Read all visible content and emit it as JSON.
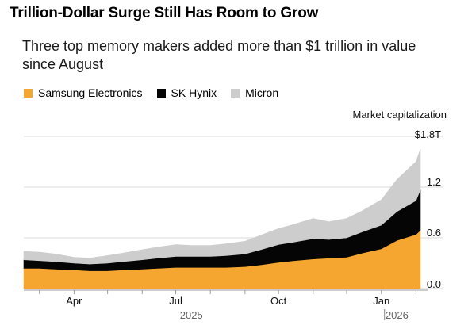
{
  "title": "Trillion-Dollar Surge Still Has Room to Grow",
  "subtitle": "Three top memory makers added more than $1 trillion in value since August",
  "colors": {
    "samsung": "#f5a630",
    "hynix": "#050505",
    "micron": "#cdcdcd",
    "grid": "#d8d8d8",
    "axis": "#999999"
  },
  "legend": [
    {
      "name": "Samsung Electronics",
      "color": "#f5a630"
    },
    {
      "name": "SK Hynix",
      "color": "#050505"
    },
    {
      "name": "Micron",
      "color": "#cdcdcd"
    }
  ],
  "chart_data": {
    "type": "area",
    "stacked": true,
    "ylabel": "Market capitalization",
    "y_ticks": [
      "$1.8T",
      "1.2",
      "0.6",
      "0.0"
    ],
    "y_tick_values": [
      1.8,
      1.2,
      0.6,
      0.0
    ],
    "ylim": [
      0,
      1.8
    ],
    "x_ticks": [
      "Apr",
      "Jul",
      "Oct",
      "Jan"
    ],
    "x_tick_dates": [
      "2025-04-01",
      "2025-07-01",
      "2025-10-01",
      "2026-01-01"
    ],
    "x_years": [
      "2025",
      "2026"
    ],
    "x_year_anchor_dates": [
      "2025-07-15",
      "2026-01-15"
    ],
    "xlim": [
      "2025-02-15",
      "2026-02-05"
    ],
    "grid": true,
    "series": [
      {
        "name": "Samsung Electronics",
        "x": [
          "2025-02-15",
          "2025-03-01",
          "2025-03-15",
          "2025-04-01",
          "2025-04-15",
          "2025-05-01",
          "2025-05-15",
          "2025-06-01",
          "2025-06-15",
          "2025-07-01",
          "2025-07-15",
          "2025-08-01",
          "2025-08-15",
          "2025-09-01",
          "2025-09-15",
          "2025-10-01",
          "2025-10-15",
          "2025-11-01",
          "2025-11-15",
          "2025-12-01",
          "2025-12-15",
          "2026-01-01",
          "2026-01-15",
          "2026-02-01",
          "2026-02-05"
        ],
        "values": [
          0.24,
          0.24,
          0.23,
          0.22,
          0.21,
          0.21,
          0.22,
          0.23,
          0.24,
          0.25,
          0.25,
          0.25,
          0.25,
          0.26,
          0.28,
          0.31,
          0.33,
          0.35,
          0.36,
          0.37,
          0.42,
          0.47,
          0.57,
          0.64,
          0.69
        ]
      },
      {
        "name": "SK Hynix",
        "x": [
          "2025-02-15",
          "2025-03-01",
          "2025-03-15",
          "2025-04-01",
          "2025-04-15",
          "2025-05-01",
          "2025-05-15",
          "2025-06-01",
          "2025-06-15",
          "2025-07-01",
          "2025-07-15",
          "2025-08-01",
          "2025-08-15",
          "2025-09-01",
          "2025-09-15",
          "2025-10-01",
          "2025-10-15",
          "2025-11-01",
          "2025-11-15",
          "2025-12-01",
          "2025-12-15",
          "2026-01-01",
          "2026-01-15",
          "2026-02-01",
          "2026-02-05"
        ],
        "values": [
          0.1,
          0.09,
          0.09,
          0.08,
          0.08,
          0.09,
          0.1,
          0.11,
          0.12,
          0.13,
          0.13,
          0.13,
          0.14,
          0.15,
          0.18,
          0.21,
          0.22,
          0.24,
          0.22,
          0.23,
          0.25,
          0.28,
          0.34,
          0.4,
          0.48
        ]
      },
      {
        "name": "Micron",
        "x": [
          "2025-02-15",
          "2025-03-01",
          "2025-03-15",
          "2025-04-01",
          "2025-04-15",
          "2025-05-01",
          "2025-05-15",
          "2025-06-01",
          "2025-06-15",
          "2025-07-01",
          "2025-07-15",
          "2025-08-01",
          "2025-08-15",
          "2025-09-01",
          "2025-09-15",
          "2025-10-01",
          "2025-10-15",
          "2025-11-01",
          "2025-11-15",
          "2025-12-01",
          "2025-12-15",
          "2026-01-01",
          "2026-01-15",
          "2026-02-01",
          "2026-02-05"
        ],
        "values": [
          0.1,
          0.1,
          0.09,
          0.07,
          0.07,
          0.09,
          0.1,
          0.12,
          0.13,
          0.14,
          0.13,
          0.13,
          0.14,
          0.15,
          0.17,
          0.19,
          0.21,
          0.24,
          0.21,
          0.23,
          0.25,
          0.3,
          0.38,
          0.46,
          0.48
        ]
      }
    ]
  }
}
